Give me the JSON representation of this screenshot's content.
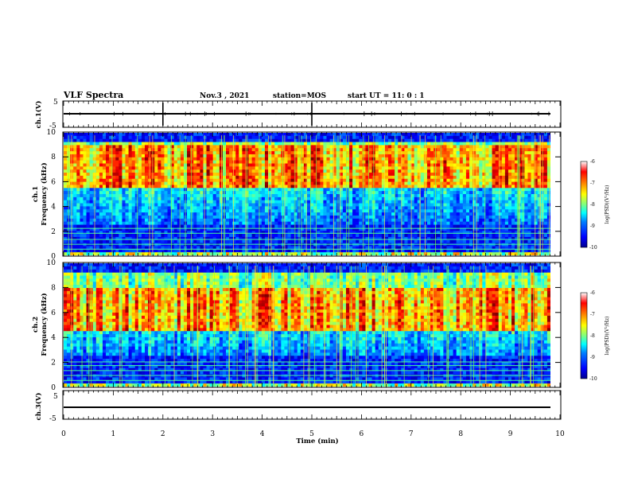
{
  "header": {
    "title": "VLF Spectra",
    "date": "Nov.3 , 2021",
    "station": "station=MOS",
    "start_ut": "start UT = 11: 0 : 1"
  },
  "panels": {
    "ch1_label": "ch.1(V)",
    "ch1_specgram_label": "ch.1",
    "ch2_specgram_label": "ch.2",
    "ch3_label": "ch.3(V)",
    "freq_label": "Frequency (kHz)",
    "time_label": "Time (min)",
    "colorbar_label": "log(PSD)(V²/Hz)"
  },
  "chart_data": [
    {
      "type": "line",
      "name": "ch1-waveform",
      "ylabel": "ch.1(V)",
      "ylim": [
        -5,
        5
      ],
      "y_ticks": [
        "5",
        "-5"
      ],
      "xlim": [
        0,
        10
      ],
      "baseline": 0
    },
    {
      "type": "heatmap",
      "name": "ch1-spectrogram",
      "ylabel": "Frequency (kHz)",
      "ylim": [
        0,
        10
      ],
      "y_ticks": [
        "0",
        "2",
        "4",
        "6",
        "8",
        "10"
      ],
      "xlim": [
        0,
        10
      ],
      "color_range": [
        -10,
        -6
      ],
      "colorbar_ticks": [
        "-6",
        "-7",
        "-8",
        "-9",
        "-10"
      ],
      "colorbar_label": "log(PSD)(V²/Hz)",
      "data_end_min": 9.8,
      "intense_band_khz": [
        5.5,
        9
      ],
      "hum_lines_khz": [
        0.5,
        0.9,
        1.3,
        1.8,
        2.2
      ]
    },
    {
      "type": "heatmap",
      "name": "ch2-spectrogram",
      "ylabel": "Frequency (kHz)",
      "ylim": [
        0,
        10
      ],
      "y_ticks": [
        "0",
        "2",
        "4",
        "6",
        "8",
        "10"
      ],
      "xlim": [
        0,
        10
      ],
      "color_range": [
        -10,
        -6
      ],
      "colorbar_ticks": [
        "-6",
        "-7",
        "-8",
        "-9",
        "-10"
      ],
      "colorbar_label": "log(PSD)(V²/Hz)",
      "data_end_min": 9.8,
      "intense_band_khz": [
        4.5,
        8
      ],
      "hum_lines_khz": [
        0.5,
        0.9,
        1.3,
        1.7,
        2.0
      ]
    },
    {
      "type": "line",
      "name": "ch3-waveform",
      "ylabel": "ch.3(V)",
      "ylim": [
        -5,
        5
      ],
      "y_ticks": [
        "5",
        "-5"
      ],
      "xlim": [
        0,
        10
      ],
      "baseline": 0
    }
  ],
  "x_axis": {
    "label": "Time (min)",
    "ticks": [
      "0",
      "1",
      "2",
      "3",
      "4",
      "5",
      "6",
      "7",
      "8",
      "9",
      "10"
    ]
  },
  "colors": {
    "jet": [
      "#00008f",
      "#0000ff",
      "#0080ff",
      "#00ffff",
      "#80ff80",
      "#ffff00",
      "#ff8000",
      "#ff0000",
      "#800000"
    ],
    "background": "#000000",
    "axis": "#000000"
  }
}
